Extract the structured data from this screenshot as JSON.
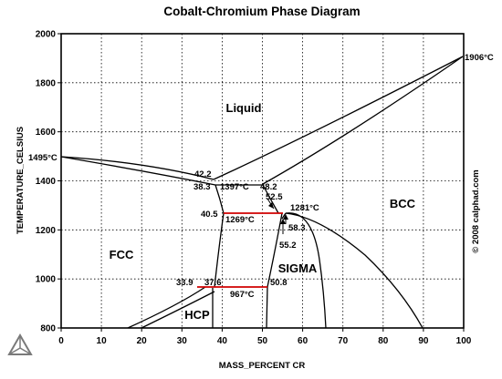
{
  "title": "Cobalt-Chromium Phase Diagram",
  "x_axis": {
    "label": "MASS_PERCENT CR",
    "ticks": [
      "0",
      "10",
      "20",
      "30",
      "40",
      "50",
      "60",
      "70",
      "80",
      "90",
      "100"
    ]
  },
  "y_axis": {
    "label": "TEMPERATURE_CELSIUS",
    "ticks": [
      "800",
      "1000",
      "1200",
      "1400",
      "1600",
      "1800",
      "2000"
    ]
  },
  "copyright": "© 2008 calphad.com",
  "phases": {
    "liquid": "Liquid",
    "fcc": "FCC",
    "bcc": "BCC",
    "sigma": "SIGMA",
    "hcp": "HCP"
  },
  "annotations": {
    "t1906": "1906°C",
    "t1495": "1495°C",
    "c42_2": "42.2",
    "c38_3": "38.3",
    "t1397": "1397°C",
    "c48_2": "48.2",
    "c52_5": "52.5",
    "t1281": "1281°C",
    "c40_5": "40.5",
    "t1269": "1269°C",
    "c58_3": "58.3",
    "c55_2": "55.2",
    "c33_9": "33.9",
    "c37_6": "37.6",
    "c50_8": "50.8",
    "t967": "967°C"
  },
  "colors": {
    "lines": "#000000",
    "invariant_lines": "#d00000",
    "logo": "#7a7a7a"
  },
  "logo_icon": "calphad-triangle-logo-icon"
}
